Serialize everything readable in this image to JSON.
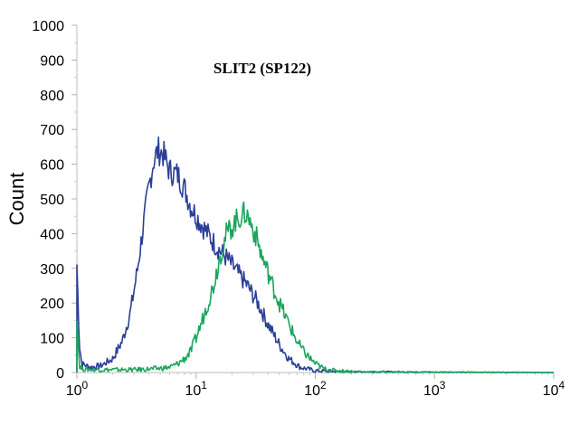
{
  "chart_data": {
    "type": "line",
    "title": "SLIT2 (SP122)",
    "ylabel": "Count",
    "xlabel": "",
    "xscale": "log",
    "xlim": [
      1,
      10000
    ],
    "ylim": [
      0,
      1000
    ],
    "y_ticks": [
      0,
      100,
      200,
      300,
      400,
      500,
      600,
      700,
      800,
      900,
      1000
    ],
    "x_ticks": [
      {
        "value": 1,
        "base": "10",
        "exp": "0"
      },
      {
        "value": 10,
        "base": "10",
        "exp": "1"
      },
      {
        "value": 100,
        "base": "10",
        "exp": "2"
      },
      {
        "value": 1000,
        "base": "10",
        "exp": "3"
      },
      {
        "value": 10000,
        "base": "10",
        "exp": "4"
      }
    ],
    "grid": false,
    "legend": "none",
    "series": [
      {
        "color": "#2b3f98",
        "x": [
          1,
          1.05,
          1.1,
          1.3,
          1.6,
          2.0,
          2.4,
          2.8,
          3.2,
          3.6,
          4.0,
          4.4,
          4.8,
          5.3,
          6.0,
          7.0,
          8.0,
          9.0,
          10.5,
          12.5,
          15,
          18,
          22,
          27,
          33,
          40,
          50,
          60,
          75,
          100,
          150,
          250,
          400,
          1000,
          10000
        ],
        "values": [
          310,
          80,
          25,
          15,
          20,
          40,
          90,
          170,
          290,
          420,
          530,
          610,
          640,
          630,
          580,
          570,
          530,
          480,
          440,
          400,
          360,
          330,
          290,
          250,
          200,
          140,
          80,
          40,
          15,
          5,
          3,
          2,
          2,
          1,
          0
        ]
      },
      {
        "color": "#1aa65a",
        "x": [
          1,
          1.05,
          1.1,
          1.5,
          2,
          3,
          4,
          5,
          6,
          7,
          8,
          9,
          10,
          11,
          12,
          14,
          16,
          18,
          20,
          22,
          24,
          26,
          28,
          32,
          36,
          40,
          45,
          50,
          60,
          70,
          80,
          100,
          120,
          150,
          200,
          300,
          1000,
          10000
        ],
        "values": [
          170,
          20,
          10,
          8,
          8,
          8,
          10,
          12,
          15,
          25,
          40,
          60,
          100,
          140,
          180,
          250,
          340,
          400,
          420,
          440,
          450,
          460,
          440,
          390,
          330,
          290,
          240,
          200,
          140,
          90,
          60,
          25,
          10,
          5,
          3,
          2,
          1,
          0
        ]
      }
    ]
  }
}
